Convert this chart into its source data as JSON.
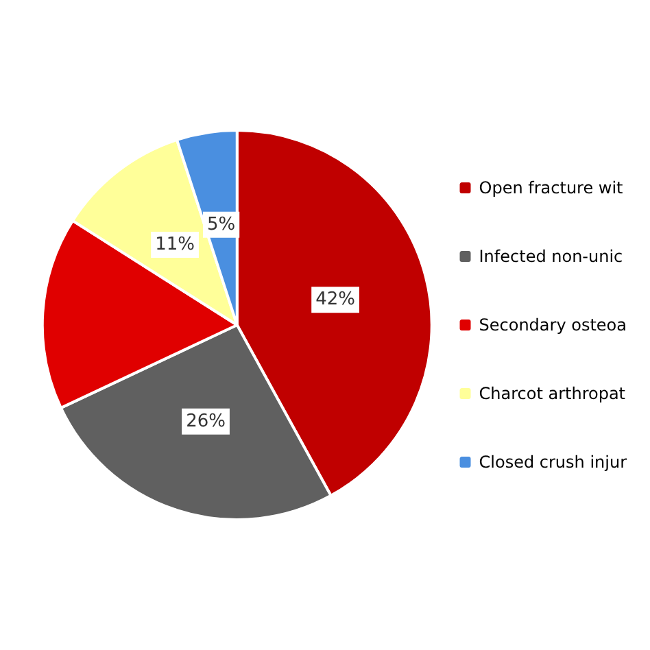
{
  "chart_data": {
    "type": "pie",
    "categories": [
      "Open fracture wit",
      "Infected non-unic",
      "Secondary osteoa",
      "Charcot arthropat",
      "Closed crush injur"
    ],
    "values": [
      42,
      26,
      16,
      11,
      5
    ],
    "colors": [
      "#c00000",
      "#606060",
      "#e00000",
      "#ffff99",
      "#4a8fe0"
    ],
    "value_labels": [
      "42%",
      "26%",
      null,
      "11%",
      "5%"
    ],
    "legend": "right"
  }
}
